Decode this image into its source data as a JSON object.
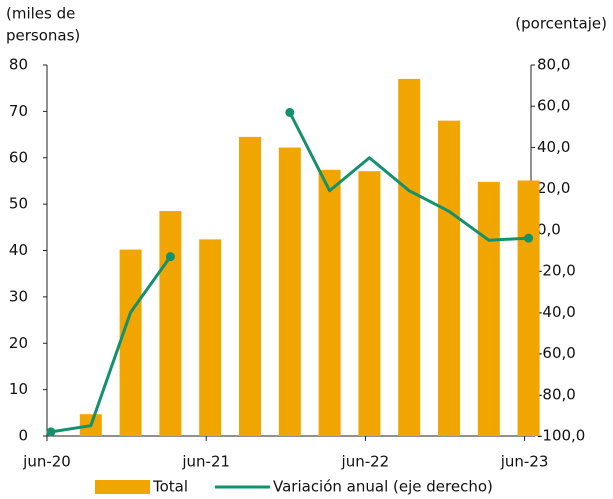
{
  "chart_data": {
    "type": "bar_line",
    "y_label": [
      "(miles de",
      "personas)"
    ],
    "y2_label": "(porcentaje)",
    "categories": [
      "jun-20",
      null,
      null,
      null,
      "jun-21",
      null,
      null,
      null,
      "jun-22",
      null,
      null,
      null,
      "jun-23"
    ],
    "series": [
      {
        "name": "Total",
        "color": "#f0a500",
        "type": "bar",
        "values": [
          null,
          4.7,
          40.2,
          48.5,
          42.4,
          64.5,
          62.2,
          57.4,
          57.1,
          77.0,
          68.0,
          54.8,
          55.1
        ]
      },
      {
        "name": "Variación anual (eje derecho)",
        "color": "#13906c",
        "type": "line",
        "axis": "y2",
        "values": [
          -98,
          -95,
          -40,
          -13,
          null,
          null,
          57,
          19,
          35,
          19,
          9,
          -5,
          -4
        ]
      }
    ],
    "ylim": [
      0,
      80
    ],
    "yticks": [
      0,
      10,
      20,
      30,
      40,
      50,
      60,
      70,
      80
    ],
    "y2lim": [
      -100,
      80
    ],
    "y2ticks": [
      {
        "value": -100,
        "label": "-100,0"
      },
      {
        "value": -80,
        "label": "-80,0"
      },
      {
        "value": -60,
        "label": "-60,0"
      },
      {
        "value": -40,
        "label": "-40,0"
      },
      {
        "value": -20,
        "label": "-20,0"
      },
      {
        "value": 0,
        "label": "0,0"
      },
      {
        "value": 20,
        "label": "20,0"
      },
      {
        "value": 40,
        "label": "40,0"
      },
      {
        "value": 60,
        "label": "60,0"
      },
      {
        "value": 80,
        "label": "80,0"
      }
    ]
  }
}
